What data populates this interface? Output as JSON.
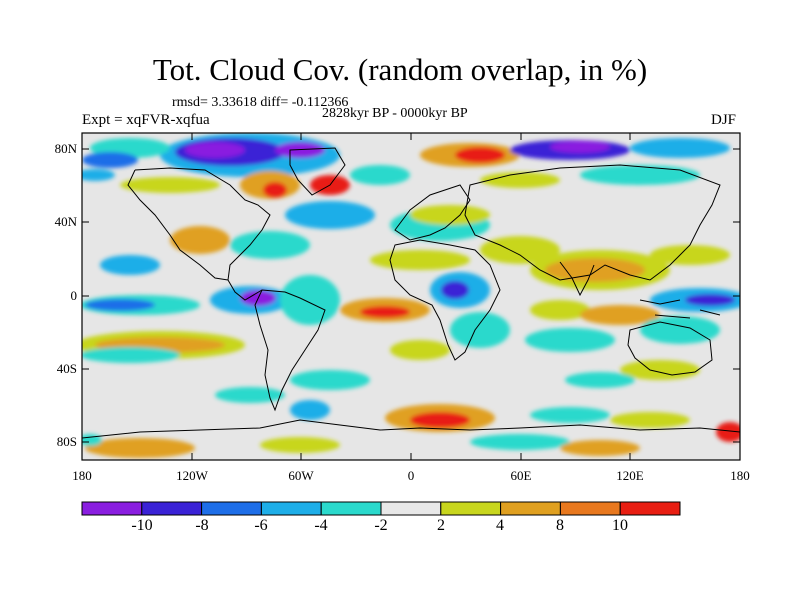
{
  "title": "Tot. Cloud Cov. (random overlap, in %)",
  "stats": "rmsd= 3.33618 diff= -0.112366",
  "period": "2828kyr BP - 0000kyr BP",
  "experiment": "Expt = xqFVR-xqfua",
  "season": "DJF",
  "lat_labels": [
    "80N",
    "40N",
    "0",
    "40S",
    "80S"
  ],
  "lon_labels": [
    "180",
    "120W",
    "60W",
    "0",
    "60E",
    "120E",
    "180"
  ],
  "colorbar": {
    "labels": [
      "-10",
      "-8",
      "-6",
      "-4",
      "-2",
      "2",
      "4",
      "8",
      "10"
    ],
    "colors": [
      "#8a1ee0",
      "#3a22d6",
      "#1e6ee8",
      "#1eaee8",
      "#2ad9cc",
      "#e8e8e8",
      "#c8d61e",
      "#e0a020",
      "#e8781e",
      "#e81e12",
      "#ffffff"
    ]
  }
}
